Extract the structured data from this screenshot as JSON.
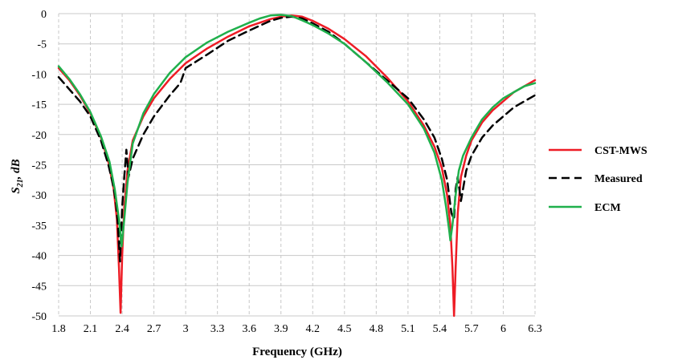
{
  "chart_data": {
    "type": "line",
    "title": "",
    "xlabel": "Frequency (GHz)",
    "ylabel_main": "S",
    "ylabel_sub": "21",
    "ylabel_suffix": ", dB",
    "xlim": [
      1.8,
      6.3
    ],
    "ylim": [
      -50,
      0
    ],
    "x_ticks": [
      1.8,
      2.1,
      2.4,
      2.7,
      3,
      3.3,
      3.6,
      3.9,
      4.2,
      4.5,
      4.8,
      5.1,
      5.4,
      5.7,
      6,
      6.3
    ],
    "x_tick_labels": [
      "1.8",
      "2.1",
      "2.4",
      "2.7",
      "3",
      "3.3",
      "3.6",
      "3.9",
      "4.2",
      "4.5",
      "4.8",
      "5.1",
      "5.4",
      "5.7",
      "6",
      "6.3"
    ],
    "y_ticks": [
      0,
      -5,
      -10,
      -15,
      -20,
      -25,
      -30,
      -35,
      -40,
      -45,
      -50
    ],
    "y_tick_labels": [
      "0",
      "-5",
      "-10",
      "-15",
      "-20",
      "-25",
      "-30",
      "-35",
      "-40",
      "-45",
      "-50"
    ],
    "grid": true,
    "legend_position": "right",
    "series": [
      {
        "name": "CST-MWS",
        "color": "#ee1c25",
        "dash": "solid",
        "points": [
          [
            1.8,
            -9
          ],
          [
            1.9,
            -11
          ],
          [
            2.0,
            -13.5
          ],
          [
            2.1,
            -16.5
          ],
          [
            2.2,
            -20.5
          ],
          [
            2.27,
            -24.5
          ],
          [
            2.32,
            -29
          ],
          [
            2.35,
            -34
          ],
          [
            2.37,
            -42
          ],
          [
            2.385,
            -49.5
          ],
          [
            2.4,
            -40
          ],
          [
            2.42,
            -32
          ],
          [
            2.45,
            -26
          ],
          [
            2.5,
            -21
          ],
          [
            2.6,
            -17
          ],
          [
            2.7,
            -14
          ],
          [
            2.85,
            -10.8
          ],
          [
            3.0,
            -8.2
          ],
          [
            3.2,
            -5.8
          ],
          [
            3.4,
            -3.8
          ],
          [
            3.6,
            -2.1
          ],
          [
            3.8,
            -0.9
          ],
          [
            3.9,
            -0.5
          ],
          [
            4.0,
            -0.3
          ],
          [
            4.1,
            -0.5
          ],
          [
            4.2,
            -1.2
          ],
          [
            4.35,
            -2.5
          ],
          [
            4.5,
            -4.2
          ],
          [
            4.7,
            -7
          ],
          [
            4.9,
            -10.5
          ],
          [
            5.1,
            -14.5
          ],
          [
            5.25,
            -18.5
          ],
          [
            5.35,
            -22
          ],
          [
            5.42,
            -25.5
          ],
          [
            5.47,
            -30
          ],
          [
            5.5,
            -35
          ],
          [
            5.52,
            -42
          ],
          [
            5.535,
            -50
          ],
          [
            5.55,
            -42
          ],
          [
            5.57,
            -33
          ],
          [
            5.6,
            -27
          ],
          [
            5.65,
            -23.5
          ],
          [
            5.7,
            -21
          ],
          [
            5.8,
            -18
          ],
          [
            5.9,
            -16
          ],
          [
            6.0,
            -14.5
          ],
          [
            6.1,
            -13
          ],
          [
            6.2,
            -12
          ],
          [
            6.3,
            -11
          ]
        ]
      },
      {
        "name": "Measured",
        "color": "#000000",
        "dash": "10,6",
        "points": [
          [
            1.8,
            -10.5
          ],
          [
            1.9,
            -12.5
          ],
          [
            2.0,
            -14.5
          ],
          [
            2.1,
            -17
          ],
          [
            2.2,
            -21
          ],
          [
            2.27,
            -25
          ],
          [
            2.31,
            -28
          ],
          [
            2.34,
            -31
          ],
          [
            2.36,
            -35
          ],
          [
            2.38,
            -41
          ],
          [
            2.4,
            -32
          ],
          [
            2.42,
            -27
          ],
          [
            2.44,
            -22.5
          ],
          [
            2.46,
            -27
          ],
          [
            2.5,
            -24
          ],
          [
            2.6,
            -20
          ],
          [
            2.7,
            -17
          ],
          [
            2.85,
            -13.5
          ],
          [
            2.95,
            -11.5
          ],
          [
            3.0,
            -9
          ],
          [
            3.2,
            -6.8
          ],
          [
            3.4,
            -4.5
          ],
          [
            3.6,
            -2.8
          ],
          [
            3.8,
            -1.2
          ],
          [
            3.9,
            -0.7
          ],
          [
            4.0,
            -0.5
          ],
          [
            4.1,
            -0.8
          ],
          [
            4.2,
            -1.6
          ],
          [
            4.35,
            -3
          ],
          [
            4.5,
            -5
          ],
          [
            4.7,
            -8
          ],
          [
            4.9,
            -11
          ],
          [
            5.1,
            -14
          ],
          [
            5.25,
            -17.5
          ],
          [
            5.35,
            -20.5
          ],
          [
            5.42,
            -24
          ],
          [
            5.47,
            -27.5
          ],
          [
            5.51,
            -33
          ],
          [
            5.535,
            -34
          ],
          [
            5.55,
            -29
          ],
          [
            5.57,
            -27
          ],
          [
            5.6,
            -31
          ],
          [
            5.65,
            -26
          ],
          [
            5.7,
            -23.5
          ],
          [
            5.8,
            -20.5
          ],
          [
            5.9,
            -18.5
          ],
          [
            6.0,
            -17
          ],
          [
            6.1,
            -15.5
          ],
          [
            6.2,
            -14.5
          ],
          [
            6.3,
            -13.5
          ]
        ]
      },
      {
        "name": "ECM",
        "color": "#1fb04c",
        "dash": "solid",
        "points": [
          [
            1.8,
            -8.7
          ],
          [
            1.9,
            -10.8
          ],
          [
            2.0,
            -13.3
          ],
          [
            2.1,
            -16.3
          ],
          [
            2.2,
            -20.3
          ],
          [
            2.28,
            -24.5
          ],
          [
            2.33,
            -29
          ],
          [
            2.37,
            -34
          ],
          [
            2.395,
            -38.5
          ],
          [
            2.42,
            -34
          ],
          [
            2.45,
            -28
          ],
          [
            2.5,
            -21.5
          ],
          [
            2.6,
            -16.5
          ],
          [
            2.7,
            -13.3
          ],
          [
            2.85,
            -9.8
          ],
          [
            3.0,
            -7.2
          ],
          [
            3.2,
            -4.8
          ],
          [
            3.4,
            -3
          ],
          [
            3.6,
            -1.5
          ],
          [
            3.7,
            -0.8
          ],
          [
            3.8,
            -0.3
          ],
          [
            3.9,
            -0.2
          ],
          [
            4.0,
            -0.4
          ],
          [
            4.1,
            -1.1
          ],
          [
            4.2,
            -1.9
          ],
          [
            4.35,
            -3.3
          ],
          [
            4.5,
            -5
          ],
          [
            4.7,
            -8
          ],
          [
            4.9,
            -11.3
          ],
          [
            5.1,
            -15
          ],
          [
            5.25,
            -19
          ],
          [
            5.35,
            -23
          ],
          [
            5.42,
            -27.5
          ],
          [
            5.46,
            -32
          ],
          [
            5.49,
            -36
          ],
          [
            5.5,
            -37.5
          ],
          [
            5.52,
            -35
          ],
          [
            5.55,
            -30
          ],
          [
            5.58,
            -26
          ],
          [
            5.62,
            -23.5
          ],
          [
            5.7,
            -20.5
          ],
          [
            5.8,
            -17.5
          ],
          [
            5.9,
            -15.5
          ],
          [
            6.0,
            -14
          ],
          [
            6.1,
            -13
          ],
          [
            6.2,
            -12
          ],
          [
            6.3,
            -11.5
          ]
        ]
      }
    ]
  }
}
